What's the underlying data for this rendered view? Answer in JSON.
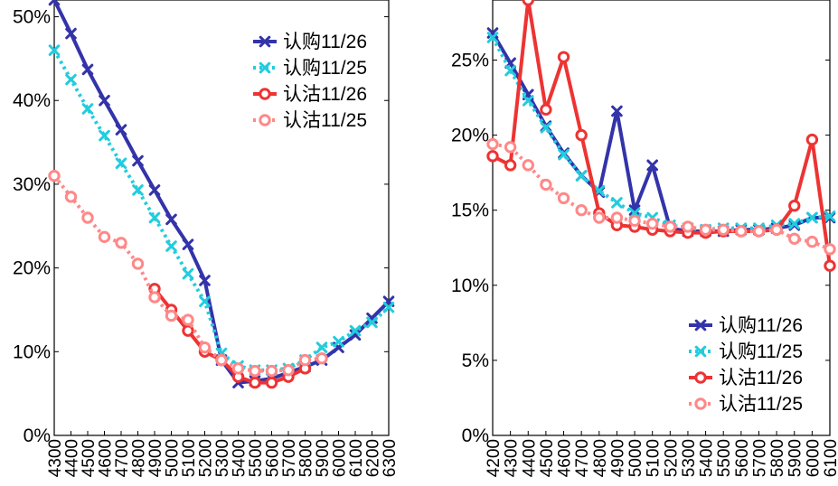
{
  "chart_data": [
    {
      "type": "line",
      "title": "",
      "xlabel": "",
      "ylabel": "",
      "x": [
        4300,
        4400,
        4500,
        4600,
        4700,
        4800,
        4900,
        5000,
        5100,
        5200,
        5300,
        5400,
        5500,
        5600,
        5700,
        5800,
        5900,
        6000,
        6100,
        6200,
        6300
      ],
      "x_tick_labels": [
        "4300",
        "4400",
        "4500",
        "4600",
        "4700",
        "4800",
        "4900",
        "5000",
        "5100",
        "5200",
        "5300",
        "5400",
        "5500",
        "5600",
        "5700",
        "5800",
        "5900",
        "6000",
        "6100",
        "6200",
        "6300"
      ],
      "xlim": [
        4300,
        6300
      ],
      "ylim": [
        0,
        52
      ],
      "y_ticks": [
        0,
        10,
        20,
        30,
        40,
        50
      ],
      "y_tick_labels": [
        "0%",
        "10%",
        "20%",
        "30%",
        "40%",
        "50%"
      ],
      "legend_position": "top-right",
      "series": [
        {
          "name": "认购11/26",
          "color": "#3333aa",
          "style": "solid",
          "marker": "x",
          "values": [
            52.0,
            48.0,
            43.7,
            40.0,
            36.5,
            32.8,
            29.3,
            25.8,
            22.8,
            18.5,
            9.0,
            6.3,
            6.5,
            6.8,
            7.5,
            8.2,
            9.0,
            10.5,
            12.0,
            14.0,
            16.0
          ]
        },
        {
          "name": "认购11/25",
          "color": "#22ccdd",
          "style": "dotted",
          "marker": "x",
          "values": [
            46.0,
            42.5,
            39.0,
            35.8,
            32.5,
            29.3,
            26.0,
            22.6,
            19.3,
            16.0,
            9.8,
            8.3,
            7.8,
            7.8,
            8.0,
            9.0,
            10.5,
            11.2,
            12.5,
            13.5,
            15.3
          ]
        },
        {
          "name": "认沽11/26",
          "color": "#ee3333",
          "style": "solid",
          "marker": "o",
          "values": [
            null,
            null,
            null,
            null,
            null,
            null,
            17.5,
            15.0,
            12.5,
            10.0,
            9.0,
            7.0,
            6.3,
            6.3,
            7.0,
            8.0,
            null,
            null,
            null,
            null,
            null
          ]
        },
        {
          "name": "认沽11/25",
          "color": "#ff8888",
          "style": "dotted",
          "marker": "o",
          "values": [
            31.0,
            28.5,
            26.0,
            23.7,
            23.0,
            20.5,
            16.5,
            14.3,
            13.8,
            10.5,
            9.0,
            8.0,
            7.7,
            7.7,
            7.8,
            9.0,
            9.2,
            null,
            null,
            null,
            null
          ]
        }
      ]
    },
    {
      "type": "line",
      "title": "",
      "xlabel": "",
      "ylabel": "",
      "x": [
        4200,
        4300,
        4400,
        4500,
        4600,
        4700,
        4800,
        4900,
        5000,
        5100,
        5200,
        5300,
        5400,
        5500,
        5600,
        5700,
        5800,
        5900,
        6000,
        6100
      ],
      "x_tick_labels": [
        "4200",
        "4300",
        "4400",
        "4500",
        "4600",
        "4700",
        "4800",
        "4900",
        "5000",
        "5100",
        "5200",
        "5300",
        "5400",
        "5500",
        "5600",
        "5700",
        "5800",
        "5900",
        "6000",
        "6100"
      ],
      "xlim": [
        4200,
        6100
      ],
      "ylim": [
        0,
        29
      ],
      "y_ticks": [
        0,
        5,
        10,
        15,
        20,
        25
      ],
      "y_tick_labels": [
        "0%",
        "5%",
        "10%",
        "15%",
        "20%",
        "25%"
      ],
      "legend_position": "bottom-right",
      "series": [
        {
          "name": "认购11/26",
          "color": "#3333aa",
          "style": "solid",
          "marker": "x",
          "values": [
            26.8,
            24.8,
            22.7,
            20.6,
            18.8,
            17.3,
            16.2,
            21.6,
            15.0,
            18.0,
            13.8,
            13.6,
            13.6,
            13.6,
            13.7,
            13.7,
            13.8,
            14.0,
            14.5,
            14.5
          ]
        },
        {
          "name": "认购11/25",
          "color": "#22ccdd",
          "style": "dotted",
          "marker": "x",
          "values": [
            26.5,
            24.3,
            22.3,
            20.5,
            18.7,
            17.3,
            16.3,
            15.5,
            14.8,
            14.5,
            14.0,
            13.8,
            13.7,
            13.8,
            13.8,
            13.8,
            14.0,
            14.1,
            14.5,
            14.6
          ]
        },
        {
          "name": "认沽11/26",
          "color": "#ee3333",
          "style": "solid",
          "marker": "o",
          "values": [
            18.6,
            18.0,
            29.0,
            21.7,
            25.2,
            20.0,
            14.8,
            14.0,
            13.9,
            13.7,
            13.6,
            13.5,
            13.5,
            13.6,
            13.6,
            13.6,
            13.7,
            15.3,
            19.7,
            11.3
          ]
        },
        {
          "name": "认沽11/25",
          "color": "#ff8888",
          "style": "dotted",
          "marker": "o",
          "values": [
            19.4,
            19.2,
            18.0,
            16.7,
            15.8,
            15.0,
            14.5,
            14.5,
            14.3,
            14.1,
            13.9,
            13.9,
            13.7,
            13.7,
            13.6,
            13.6,
            13.7,
            13.1,
            12.9,
            12.4
          ]
        }
      ]
    }
  ]
}
